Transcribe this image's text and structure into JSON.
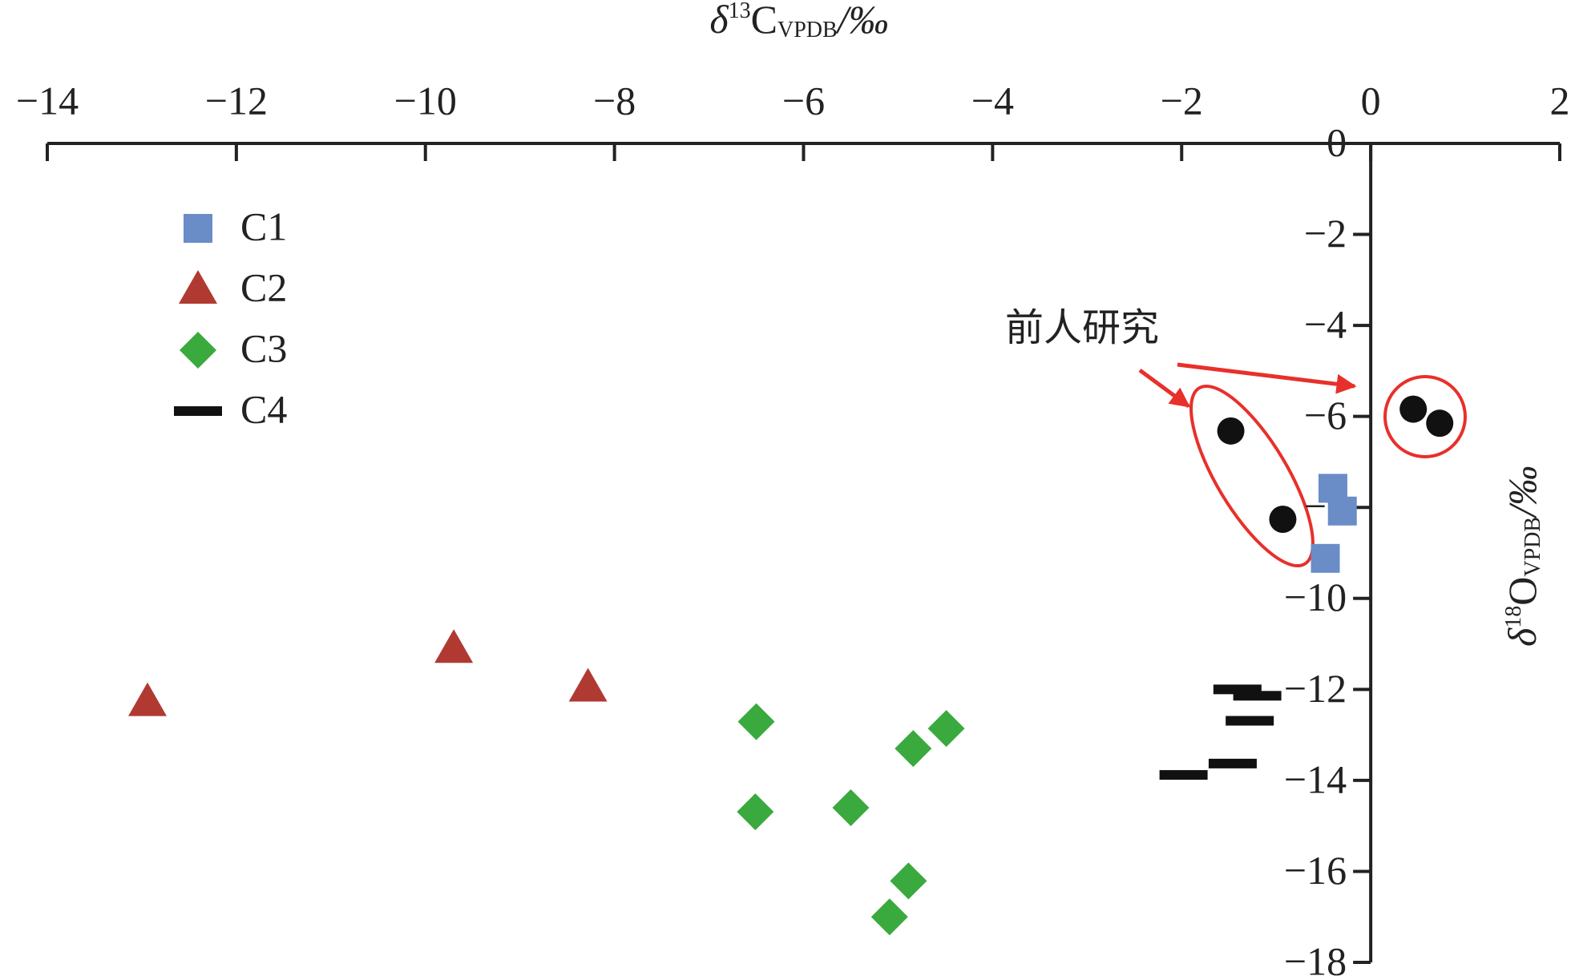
{
  "chart_data": {
    "type": "scatter",
    "xlabel": {
      "symbol": "δ",
      "sup": "13",
      "base": "C",
      "sub": "VPDB",
      "unit": "/‰"
    },
    "ylabel": {
      "symbol": "δ",
      "sup": "18",
      "base": "O",
      "sub": "VPDB",
      "unit": "/‰"
    },
    "annotation": "前人研究",
    "xlim": [
      -14,
      2
    ],
    "xticks": [
      {
        "value": -14,
        "label": "−14"
      },
      {
        "value": -12,
        "label": "−12"
      },
      {
        "value": -10,
        "label": "−10"
      },
      {
        "value": -8,
        "label": "−8"
      },
      {
        "value": -6,
        "label": "−6"
      },
      {
        "value": -4,
        "label": "−4"
      },
      {
        "value": -2,
        "label": "−2"
      },
      0,
      2
    ],
    "ylim": [
      0,
      -18
    ],
    "yticks": [
      0,
      {
        "value": -2,
        "label": "−2"
      },
      {
        "value": -4,
        "label": "−4"
      },
      {
        "value": -6,
        "label": "−6"
      },
      {
        "value": -8,
        "label": "−8"
      },
      {
        "value": -10,
        "label": "−10"
      },
      {
        "value": -12,
        "label": "−12"
      },
      {
        "value": -14,
        "label": "−14"
      },
      {
        "value": -16,
        "label": "−16"
      },
      {
        "value": -18,
        "label": "−18"
      }
    ],
    "series": [
      {
        "name": "C1",
        "marker": "square",
        "color": "#6a8cc7",
        "x": [
          -0.4,
          -0.3,
          -0.48
        ],
        "values": [
          -7.58,
          -8.08,
          -9.12
        ]
      },
      {
        "name": "C2",
        "marker": "triangle",
        "color": "#b03a32",
        "x": [
          -12.94,
          -9.7,
          -8.28
        ],
        "values": [
          -12.27,
          -11.1,
          -11.95
        ]
      },
      {
        "name": "C3",
        "marker": "diamond",
        "color": "#3aaa3f",
        "x": [
          -6.5,
          -4.49,
          -4.84,
          -6.51,
          -5.5,
          -4.89,
          -5.09
        ],
        "values": [
          -12.71,
          -12.86,
          -13.3,
          -14.69,
          -14.6,
          -16.21,
          -17.0
        ]
      },
      {
        "name": "C4",
        "marker": "dash",
        "color": "#111111",
        "x": [
          -1.41,
          -1.2,
          -1.28,
          -1.46,
          -1.98
        ],
        "values": [
          -12.0,
          -12.14,
          -12.69,
          -13.63,
          -13.88
        ]
      },
      {
        "marker": "circle",
        "color": "#111111",
        "x": [
          -1.48,
          -0.93,
          0.45,
          0.73
        ],
        "values": [
          -6.32,
          -8.26,
          -5.84,
          -6.15
        ]
      }
    ]
  }
}
